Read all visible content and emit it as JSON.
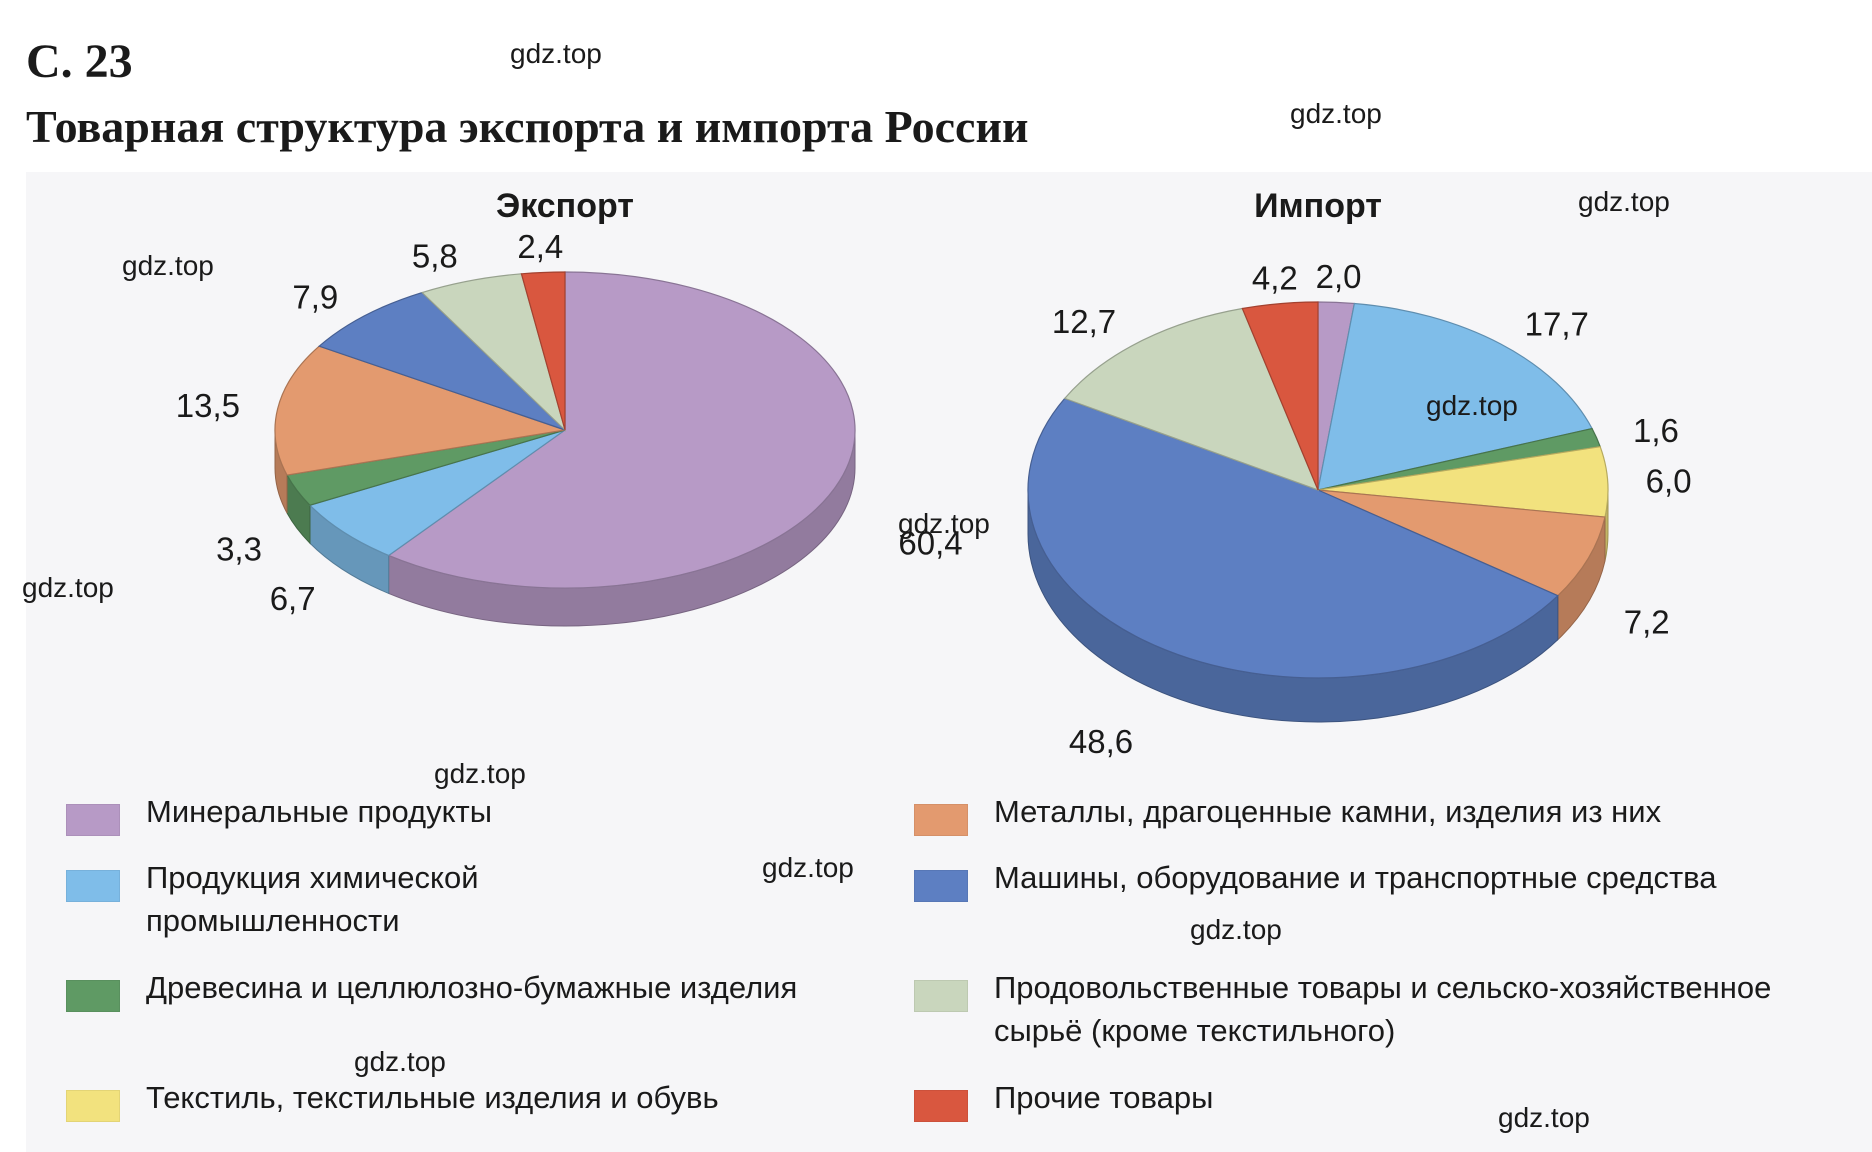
{
  "page": {
    "label": "С. 23",
    "title": "Товарная структура экспорта и импорта России",
    "watermark": "gdz.top"
  },
  "categories": [
    {
      "key": "mineral",
      "label": "Минеральные продукты",
      "color": "#b79ac6"
    },
    {
      "key": "chemical",
      "label": "Продукция химической промышленности",
      "color": "#7fbde9"
    },
    {
      "key": "wood",
      "label": "Древесина и целлюлозно-бумажные изделия",
      "color": "#5f9a64"
    },
    {
      "key": "textile",
      "label": "Текстиль, текстильные изделия и обувь",
      "color": "#f2e27e"
    },
    {
      "key": "metals",
      "label": "Металлы, драгоценные камни, изделия из них",
      "color": "#e39a6f"
    },
    {
      "key": "machines",
      "label": "Машины, оборудование и транспортные средства",
      "color": "#5d7fc2"
    },
    {
      "key": "food",
      "label": "Продовольственные товары и сельско-хозяйственное сырьё (кроме текстильного)",
      "color": "#c9d6bd"
    },
    {
      "key": "other",
      "label": "Прочие товары",
      "color": "#d9573f"
    }
  ],
  "chart_data": [
    {
      "type": "pie",
      "title": "Экспорт",
      "slices": [
        {
          "category": "mineral",
          "value": 60.4,
          "label": "60,4"
        },
        {
          "category": "chemical",
          "value": 6.7,
          "label": "6,7"
        },
        {
          "category": "wood",
          "value": 3.3,
          "label": "3,3"
        },
        {
          "category": "metals",
          "value": 13.5,
          "label": "13,5"
        },
        {
          "category": "machines",
          "value": 7.9,
          "label": "7,9"
        },
        {
          "category": "food",
          "value": 5.8,
          "label": "5,8"
        },
        {
          "category": "other",
          "value": 2.4,
          "label": "2,4"
        }
      ]
    },
    {
      "type": "pie",
      "title": "Импорт",
      "slices": [
        {
          "category": "mineral",
          "value": 2.0,
          "label": "2,0"
        },
        {
          "category": "chemical",
          "value": 17.7,
          "label": "17,7"
        },
        {
          "category": "wood",
          "value": 1.6,
          "label": "1,6"
        },
        {
          "category": "textile",
          "value": 6.0,
          "label": "6,0"
        },
        {
          "category": "metals",
          "value": 7.2,
          "label": "7,2"
        },
        {
          "category": "machines",
          "value": 48.6,
          "label": "48,6"
        },
        {
          "category": "food",
          "value": 12.7,
          "label": "12,7"
        },
        {
          "category": "other",
          "value": 4.2,
          "label": "4,2"
        }
      ]
    }
  ]
}
